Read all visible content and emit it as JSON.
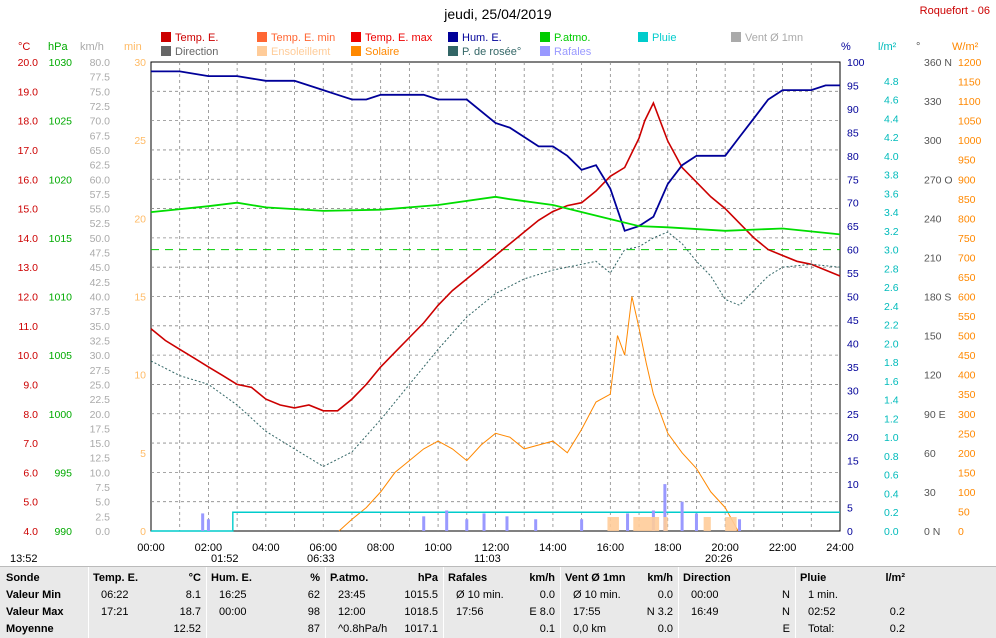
{
  "header": {
    "title": "jeudi, 25/04/2019",
    "station": "Roquefort - 06"
  },
  "legend": [
    {
      "label": "Temp. E.",
      "color": "#cc0000"
    },
    {
      "label": "Temp. E. min",
      "color": "#ff6633"
    },
    {
      "label": "Temp. E. max",
      "color": "#ee0000"
    },
    {
      "label": "Hum. E.",
      "color": "#000099"
    },
    {
      "label": "P.atmo.",
      "color": "#00cc00"
    },
    {
      "label": "Pluie",
      "color": "#00cccc"
    },
    {
      "label": "Vent Ø 1mn",
      "color": "#aaaaaa"
    },
    {
      "label": "Direction",
      "color": "#666666"
    },
    {
      "label": "Ensoleillemt",
      "color": "#ffcc99"
    },
    {
      "label": "Solaire",
      "color": "#ff8800"
    },
    {
      "label": "P. de rosée°",
      "color": "#336666"
    },
    {
      "label": "Rafales",
      "color": "#9999ff"
    }
  ],
  "axes": {
    "celsius": {
      "unit": "°C",
      "ticks": [
        "20.0",
        "19.0",
        "18.0",
        "17.0",
        "16.0",
        "15.0",
        "14.0",
        "13.0",
        "12.0",
        "11.0",
        "10.0",
        "9.0",
        "8.0",
        "7.0",
        "6.0",
        "5.0",
        "4.0"
      ]
    },
    "hpa": {
      "unit": "hPa",
      "ticks": [
        "1030",
        "1025",
        "1020",
        "1015",
        "1010",
        "1005",
        "1000",
        "995",
        "990"
      ]
    },
    "kmh": {
      "unit": "km/h",
      "ticks": [
        "80.0",
        "77.5",
        "75.0",
        "72.5",
        "70.0",
        "67.5",
        "65.0",
        "62.5",
        "60.0",
        "57.5",
        "55.0",
        "52.5",
        "50.0",
        "47.5",
        "45.0",
        "42.5",
        "40.0",
        "37.5",
        "35.0",
        "32.5",
        "30.0",
        "27.5",
        "25.0",
        "22.5",
        "20.0",
        "17.5",
        "15.0",
        "12.5",
        "10.0",
        "7.5",
        "5.0",
        "2.5",
        "0.0"
      ]
    },
    "min": {
      "unit": "min",
      "ticks": [
        "30",
        "25",
        "20",
        "15",
        "10",
        "5",
        "0"
      ]
    },
    "percent": {
      "unit": "%",
      "ticks": [
        "100",
        "95",
        "90",
        "85",
        "80",
        "75",
        "70",
        "65",
        "60",
        "55",
        "50",
        "45",
        "40",
        "35",
        "30",
        "25",
        "20",
        "15",
        "10",
        "5",
        "0"
      ]
    },
    "rain": {
      "unit": "l/m²",
      "ticks": [
        "4.8",
        "4.6",
        "4.4",
        "4.2",
        "4.0",
        "3.8",
        "3.6",
        "3.4",
        "3.2",
        "3.0",
        "2.8",
        "2.6",
        "2.4",
        "2.2",
        "2.0",
        "1.8",
        "1.6",
        "1.4",
        "1.2",
        "1.0",
        "0.8",
        "0.6",
        "0.4",
        "0.2",
        "0.0"
      ]
    },
    "direction": {
      "unit": "°",
      "ticks": [
        "360 N",
        "330",
        "300",
        "270 O",
        "240",
        "210",
        "180 S",
        "150",
        "120",
        "90 E",
        "60",
        "30",
        "0 N"
      ]
    },
    "solar": {
      "unit": "W/m²",
      "ticks": [
        "1200",
        "1150",
        "1100",
        "1050",
        "1000",
        "950",
        "900",
        "850",
        "800",
        "750",
        "700",
        "650",
        "600",
        "550",
        "500",
        "450",
        "400",
        "350",
        "300",
        "250",
        "200",
        "150",
        "100",
        "50",
        "0"
      ]
    },
    "time_ticks": [
      "00:00",
      "02:00",
      "04:00",
      "06:00",
      "08:00",
      "10:00",
      "12:00",
      "14:00",
      "16:00",
      "18:00",
      "20:00",
      "22:00",
      "24:00"
    ]
  },
  "markers": {
    "moon": "13:52",
    "moonset": "01:52",
    "sunrise": "06:33",
    "noon": "11:03",
    "sunset": "20:26"
  },
  "chart_data": {
    "type": "line",
    "x_unit": "hours",
    "xlim": [
      0,
      24
    ],
    "series": [
      {
        "name": "Temp. E.",
        "axis": "celsius",
        "ylim": [
          4,
          20
        ],
        "x": [
          0,
          0.5,
          1,
          1.5,
          2,
          2.5,
          3,
          3.5,
          4,
          4.5,
          5,
          5.5,
          6,
          6.5,
          7,
          7.5,
          8,
          8.5,
          9,
          9.5,
          10,
          10.5,
          11,
          11.5,
          12,
          12.5,
          13,
          13.5,
          14,
          14.5,
          15,
          15.5,
          16,
          16.5,
          17,
          17.2,
          17.5,
          18,
          18.5,
          19,
          19.5,
          20,
          20.5,
          21,
          21.5,
          22,
          22.5,
          23,
          23.5,
          24
        ],
        "y": [
          10.9,
          10.5,
          10.2,
          9.9,
          9.6,
          9.3,
          9.0,
          8.9,
          8.5,
          8.3,
          8.2,
          8.3,
          8.1,
          8.1,
          8.5,
          9.0,
          9.6,
          10.1,
          10.6,
          11.1,
          11.7,
          12.2,
          12.6,
          13.0,
          13.4,
          13.8,
          14.2,
          14.6,
          14.9,
          15.1,
          15.2,
          15.6,
          16.1,
          16.4,
          17.4,
          18.0,
          18.6,
          17.3,
          16.4,
          15.9,
          15.4,
          15.0,
          14.5,
          14.0,
          13.6,
          13.4,
          13.2,
          13.1,
          12.9,
          12.7
        ]
      },
      {
        "name": "Hum. E.",
        "axis": "percent",
        "ylim": [
          0,
          100
        ],
        "x": [
          0,
          1,
          2,
          3,
          4,
          5,
          6,
          6.5,
          7,
          7.5,
          8,
          9,
          9.5,
          10,
          10.5,
          11,
          12,
          12.5,
          13,
          13.5,
          14,
          14.5,
          15,
          15.5,
          16,
          16.5,
          17,
          17.5,
          18,
          18.5,
          19,
          19.5,
          20,
          20.5,
          21,
          21.5,
          22,
          22.5,
          23,
          23.5,
          24
        ],
        "y": [
          98,
          98,
          97,
          97,
          96,
          96,
          94,
          93,
          92,
          92,
          93,
          93,
          93,
          92,
          92,
          92,
          87,
          86,
          84,
          82,
          82,
          80,
          77,
          78,
          73,
          64,
          65,
          67,
          74,
          78,
          80,
          80,
          80,
          84,
          88,
          92,
          94,
          94,
          94,
          95,
          95
        ]
      },
      {
        "name": "P.atmo.",
        "axis": "hpa",
        "ylim": [
          990,
          1030
        ],
        "x": [
          0,
          2,
          3,
          4,
          6,
          8,
          10,
          12,
          12.5,
          14,
          16,
          17,
          18,
          20,
          22,
          24
        ],
        "y": [
          1017.2,
          1017.7,
          1018.0,
          1017.6,
          1017.3,
          1017.4,
          1017.8,
          1018.5,
          1018.3,
          1017.8,
          1016.6,
          1016.0,
          1015.9,
          1015.6,
          1015.8,
          1015.3
        ]
      },
      {
        "name": "P. de rosée°",
        "axis": "celsius",
        "ylim": [
          4,
          20
        ],
        "x": [
          0,
          1,
          2,
          3,
          4,
          5,
          6,
          7,
          8,
          9,
          10,
          11,
          12,
          13,
          14,
          15,
          15.5,
          16,
          16.5,
          17,
          17.5,
          18,
          18.5,
          19,
          19.5,
          20,
          20.5,
          21,
          21.5,
          22,
          23,
          24
        ],
        "y": [
          9.8,
          9.3,
          9.0,
          8.3,
          7.4,
          6.8,
          6.2,
          6.7,
          7.8,
          9.0,
          10.2,
          11.3,
          12.1,
          12.6,
          12.9,
          13.1,
          13.2,
          12.8,
          13.6,
          13.7,
          14.0,
          14.2,
          13.8,
          13.2,
          12.7,
          11.9,
          11.7,
          12.2,
          12.7,
          13.0,
          13.1,
          13.0
        ]
      },
      {
        "name": "Solaire",
        "axis": "solar",
        "ylim": [
          0,
          1200
        ],
        "x": [
          6.55,
          7,
          7.5,
          8,
          8.5,
          9,
          9.5,
          10,
          10.5,
          11,
          11.5,
          12,
          12.5,
          13,
          13.5,
          14,
          14.5,
          15,
          15.5,
          16,
          16.25,
          16.5,
          16.75,
          17,
          17.25,
          17.5,
          18,
          18.5,
          19,
          19.5,
          20,
          20.45
        ],
        "y": [
          0,
          30,
          60,
          100,
          150,
          180,
          210,
          230,
          210,
          180,
          220,
          250,
          240,
          210,
          220,
          230,
          200,
          260,
          330,
          350,
          500,
          450,
          600,
          520,
          430,
          350,
          250,
          200,
          160,
          100,
          60,
          0
        ]
      },
      {
        "name": "Pluie",
        "axis": "rain",
        "ylim": [
          0,
          4.8
        ],
        "x": [
          0,
          2.85,
          24
        ],
        "y": [
          0,
          0.2,
          0.2
        ]
      },
      {
        "name": "Rafales",
        "axis": "kmh",
        "ylim": [
          0,
          80
        ],
        "x": [
          1.8,
          2.0,
          9.5,
          10.3,
          11.0,
          11.6,
          12.4,
          13.4,
          15.0,
          16.6,
          17.5,
          17.9,
          18.5,
          19.0,
          20.5
        ],
        "y": [
          3.0,
          2.0,
          2.5,
          3.5,
          2.0,
          3.0,
          2.5,
          2.0,
          2.0,
          3.0,
          3.5,
          8.0,
          5.0,
          3.0,
          2.0
        ]
      }
    ]
  },
  "stats": {
    "columns": [
      {
        "title": "Sonde",
        "unit": "",
        "rows": [
          "Valeur Min",
          "Valeur Max",
          "Moyenne"
        ]
      },
      {
        "title": "Temp. E.",
        "unit": "°C",
        "rows": [
          [
            "06:22",
            "8.1"
          ],
          [
            "17:21",
            "18.7"
          ],
          [
            "",
            "12.52"
          ]
        ]
      },
      {
        "title": "Hum. E.",
        "unit": "%",
        "rows": [
          [
            "16:25",
            "62"
          ],
          [
            "00:00",
            "98"
          ],
          [
            "",
            "87"
          ]
        ]
      },
      {
        "title": "P.atmo.",
        "unit": "hPa",
        "rows": [
          [
            "23:45",
            "1015.5"
          ],
          [
            "12:00",
            "1018.5"
          ],
          [
            "^0.8hPa/h",
            "1017.1"
          ]
        ]
      },
      {
        "title": "Rafales",
        "unit": "km/h",
        "rows": [
          [
            "Ø 10 min.",
            "0.0"
          ],
          [
            "17:56",
            "E 8.0"
          ],
          [
            "",
            "0.1"
          ]
        ]
      },
      {
        "title": "Vent Ø 1mn",
        "unit": "km/h",
        "rows": [
          [
            "Ø 10 min.",
            "0.0"
          ],
          [
            "17:55",
            "N 3.2"
          ],
          [
            "0,0 km",
            "0.0"
          ]
        ]
      },
      {
        "title": "Direction",
        "unit": "",
        "rows": [
          [
            "00:00",
            "N"
          ],
          [
            "16:49",
            "N"
          ],
          [
            "",
            "E"
          ]
        ]
      },
      {
        "title": "Pluie",
        "unit": "l/m²",
        "rows": [
          [
            "1 min.",
            ""
          ],
          [
            "02:52",
            "0.2"
          ],
          [
            "Total:",
            "0.2"
          ]
        ]
      }
    ]
  }
}
